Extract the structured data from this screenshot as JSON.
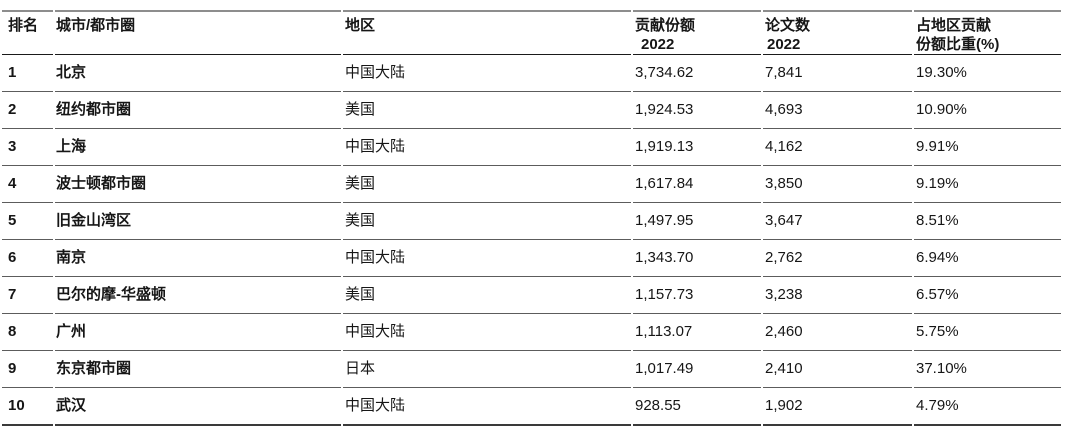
{
  "chart_data": {
    "type": "table",
    "columns": [
      "排名",
      "城市/都市圈",
      "地区",
      "贡献份额 2022",
      "论文数 2022",
      "占地区贡献份额比重(%)"
    ],
    "rows": [
      [
        "1",
        "北京",
        "中国大陆",
        "3,734.62",
        "7,841",
        "19.30%"
      ],
      [
        "2",
        "纽约都市圈",
        "美国",
        "1,924.53",
        "4,693",
        "10.90%"
      ],
      [
        "3",
        "上海",
        "中国大陆",
        "1,919.13",
        "4,162",
        "9.91%"
      ],
      [
        "4",
        "波士顿都市圈",
        "美国",
        "1,617.84",
        "3,850",
        "9.19%"
      ],
      [
        "5",
        "旧金山湾区",
        "美国",
        "1,497.95",
        "3,647",
        "8.51%"
      ],
      [
        "6",
        "南京",
        "中国大陆",
        "1,343.70",
        "2,762",
        "6.94%"
      ],
      [
        "7",
        "巴尔的摩-华盛顿",
        "美国",
        "1,157.73",
        "3,238",
        "6.57%"
      ],
      [
        "8",
        "广州",
        "中国大陆",
        "1,113.07",
        "2,460",
        "5.75%"
      ],
      [
        "9",
        "东京都市圈",
        "日本",
        "1,017.49",
        "2,410",
        "37.10%"
      ],
      [
        "10",
        "武汉",
        "中国大陆",
        "928.55",
        "1,902",
        "4.79%"
      ]
    ]
  },
  "header_lines": {
    "c0": {
      "l1": "排名",
      "l2": ""
    },
    "c1": {
      "l1": "城市/都市圈",
      "l2": ""
    },
    "c2": {
      "l1": "地区",
      "l2": ""
    },
    "c3": {
      "l1": "贡献份额",
      "l2": "2022"
    },
    "c4": {
      "l1": "论文数",
      "l2": "2022"
    },
    "c5": {
      "l1": "占地区贡献",
      "l2": "份额比重(%)"
    }
  }
}
